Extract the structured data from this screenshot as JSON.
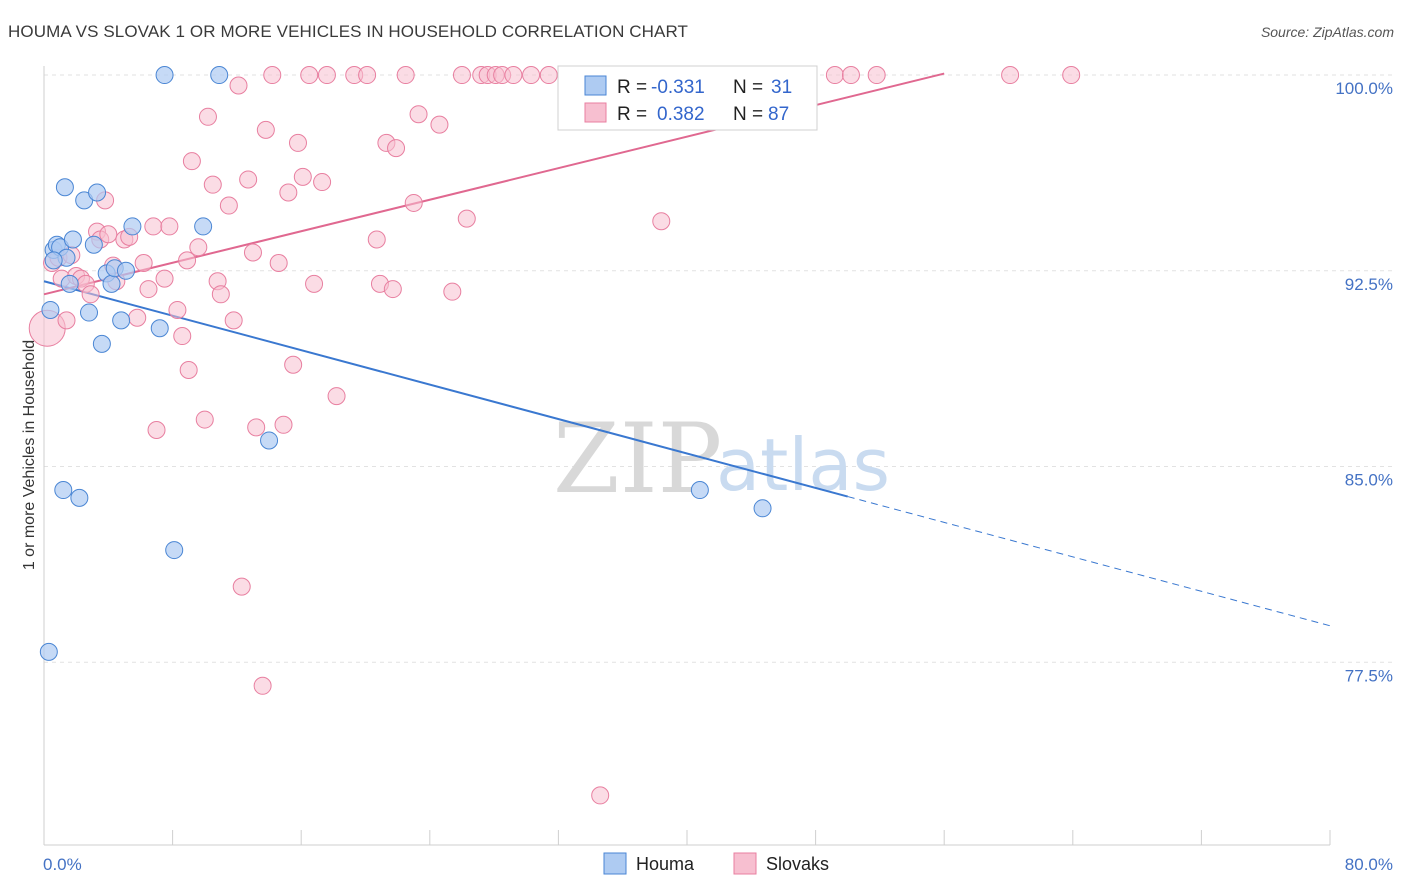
{
  "header": {
    "title": "HOUMA VS SLOVAK 1 OR MORE VEHICLES IN HOUSEHOLD CORRELATION CHART",
    "source": "Source: ZipAtlas.com"
  },
  "watermark": {
    "zip": "ZIP",
    "atlas": "atlas"
  },
  "colors": {
    "houma_fill": "#aecbf2",
    "houma_stroke": "#4a86d4",
    "houma_line": "#3a78d0",
    "slovaks_fill": "#f7bfd0",
    "slovaks_stroke": "#e87fa0",
    "slovaks_line": "#e06890",
    "grid": "#e2e2e2",
    "tick_label": "#4472c4"
  },
  "legend": {
    "houma": {
      "r_label": "R =",
      "r_value": "-0.331",
      "n_label": "N =",
      "n_value": "31"
    },
    "slovaks": {
      "r_label": "R =",
      "r_value": "0.382",
      "n_label": "N =",
      "n_value": "87"
    }
  },
  "chart_data": {
    "type": "scatter",
    "title": "HOUMA VS SLOVAK 1 OR MORE VEHICLES IN HOUSEHOLD CORRELATION CHART",
    "xlabel": "",
    "ylabel": "1 or more Vehicles in Household",
    "xlim": [
      0,
      80
    ],
    "ylim": [
      70.5,
      100.5
    ],
    "x_tick_labels": [
      {
        "value": 0,
        "label": "0.0%"
      },
      {
        "value": 80,
        "label": "80.0%"
      }
    ],
    "y_tick_labels": [
      {
        "value": 100,
        "label": "100.0%"
      },
      {
        "value": 92.5,
        "label": "92.5%"
      },
      {
        "value": 85,
        "label": "85.0%"
      },
      {
        "value": 77.5,
        "label": "77.5%"
      }
    ],
    "series": [
      {
        "name": "Houma",
        "r": -0.331,
        "n": 31,
        "trend": {
          "x_start": 0,
          "y_start": 92.1,
          "x_solid_end": 50,
          "x_end": 80,
          "slope": -0.165
        },
        "points": [
          [
            0.3,
            77.9
          ],
          [
            0.4,
            91.0
          ],
          [
            0.6,
            93.3
          ],
          [
            0.8,
            93.5
          ],
          [
            1.0,
            93.4
          ],
          [
            1.2,
            84.1
          ],
          [
            1.3,
            95.7
          ],
          [
            1.4,
            93.0
          ],
          [
            1.6,
            92.0
          ],
          [
            1.8,
            93.7
          ],
          [
            2.2,
            83.8
          ],
          [
            2.5,
            95.2
          ],
          [
            2.8,
            90.9
          ],
          [
            3.1,
            93.5
          ],
          [
            3.3,
            95.5
          ],
          [
            3.6,
            89.7
          ],
          [
            3.9,
            92.4
          ],
          [
            4.2,
            92.0
          ],
          [
            4.4,
            92.6
          ],
          [
            4.8,
            90.6
          ],
          [
            5.1,
            92.5
          ],
          [
            5.5,
            94.2
          ],
          [
            7.2,
            90.3
          ],
          [
            7.5,
            100.0
          ],
          [
            8.1,
            81.8
          ],
          [
            9.9,
            94.2
          ],
          [
            10.9,
            100.0
          ],
          [
            14.0,
            86.0
          ],
          [
            40.8,
            84.1
          ],
          [
            44.7,
            83.4
          ],
          [
            0.6,
            92.9
          ]
        ]
      },
      {
        "name": "Slovaks",
        "r": 0.382,
        "n": 87,
        "trend": {
          "x_start": 0,
          "y_start": 91.6,
          "x_end": 56,
          "slope": 0.151
        },
        "points": [
          [
            0.2,
            90.3
          ],
          [
            0.5,
            92.8
          ],
          [
            0.9,
            93.0
          ],
          [
            1.1,
            92.2
          ],
          [
            1.4,
            90.6
          ],
          [
            1.7,
            93.1
          ],
          [
            2.0,
            92.3
          ],
          [
            2.3,
            92.2
          ],
          [
            2.6,
            92.0
          ],
          [
            2.9,
            91.6
          ],
          [
            3.3,
            94.0
          ],
          [
            3.5,
            93.7
          ],
          [
            3.8,
            95.2
          ],
          [
            4.0,
            93.9
          ],
          [
            4.3,
            92.7
          ],
          [
            4.5,
            92.1
          ],
          [
            5.0,
            93.7
          ],
          [
            5.3,
            93.8
          ],
          [
            5.8,
            90.7
          ],
          [
            6.2,
            92.8
          ],
          [
            6.5,
            91.8
          ],
          [
            6.8,
            94.2
          ],
          [
            7.0,
            86.4
          ],
          [
            7.5,
            92.2
          ],
          [
            7.8,
            94.2
          ],
          [
            8.3,
            91.0
          ],
          [
            8.6,
            90.0
          ],
          [
            8.9,
            92.9
          ],
          [
            9.0,
            88.7
          ],
          [
            9.2,
            96.7
          ],
          [
            9.6,
            93.4
          ],
          [
            10.0,
            86.8
          ],
          [
            10.2,
            98.4
          ],
          [
            10.5,
            95.8
          ],
          [
            10.8,
            92.1
          ],
          [
            11.0,
            91.6
          ],
          [
            11.5,
            95.0
          ],
          [
            11.8,
            90.6
          ],
          [
            12.1,
            99.6
          ],
          [
            12.3,
            80.4
          ],
          [
            12.7,
            96.0
          ],
          [
            13.0,
            93.2
          ],
          [
            13.2,
            86.5
          ],
          [
            13.6,
            76.6
          ],
          [
            13.8,
            97.9
          ],
          [
            14.2,
            100.0
          ],
          [
            14.6,
            92.8
          ],
          [
            14.9,
            86.6
          ],
          [
            15.2,
            95.5
          ],
          [
            15.5,
            88.9
          ],
          [
            15.8,
            97.4
          ],
          [
            16.1,
            96.1
          ],
          [
            16.5,
            100.0
          ],
          [
            16.8,
            92.0
          ],
          [
            17.3,
            95.9
          ],
          [
            17.6,
            100.0
          ],
          [
            18.2,
            87.7
          ],
          [
            19.3,
            100.0
          ],
          [
            20.1,
            100.0
          ],
          [
            20.7,
            93.7
          ],
          [
            20.9,
            92.0
          ],
          [
            21.3,
            97.4
          ],
          [
            21.7,
            91.8
          ],
          [
            21.9,
            97.2
          ],
          [
            22.5,
            100.0
          ],
          [
            23.0,
            95.1
          ],
          [
            23.3,
            98.5
          ],
          [
            24.6,
            98.1
          ],
          [
            25.4,
            91.7
          ],
          [
            26.0,
            100.0
          ],
          [
            26.3,
            94.5
          ],
          [
            27.2,
            100.0
          ],
          [
            27.6,
            100.0
          ],
          [
            28.1,
            100.0
          ],
          [
            28.5,
            100.0
          ],
          [
            29.2,
            100.0
          ],
          [
            30.3,
            100.0
          ],
          [
            31.4,
            100.0
          ],
          [
            33.8,
            100.0
          ],
          [
            34.6,
            72.4
          ],
          [
            37.9,
            100.0
          ],
          [
            38.4,
            94.4
          ],
          [
            49.2,
            100.0
          ],
          [
            50.2,
            100.0
          ],
          [
            51.8,
            100.0
          ],
          [
            60.1,
            100.0
          ],
          [
            63.9,
            100.0
          ]
        ]
      }
    ]
  }
}
